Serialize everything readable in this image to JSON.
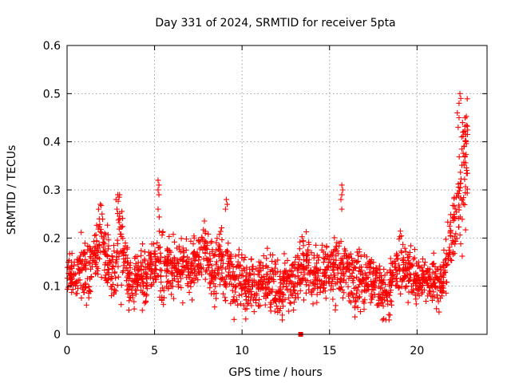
{
  "chart_data": {
    "type": "scatter",
    "title": "Day 331 of 2024, SRMTID for receiver 5pta",
    "xlabel": "GPS time / hours",
    "ylabel": "SRMTID / TECUs",
    "xlim": [
      0,
      24
    ],
    "ylim": [
      0,
      0.6
    ],
    "x_ticks": [
      0,
      5,
      10,
      15,
      20
    ],
    "y_ticks": [
      0,
      0.1,
      0.2,
      0.3,
      0.4,
      0.5,
      0.6
    ],
    "x_tick_labels": [
      "0",
      "5",
      "10",
      "15",
      "20"
    ],
    "y_tick_labels": [
      "0",
      "0.1",
      "0.2",
      "0.3",
      "0.4",
      "0.5",
      "0.6"
    ],
    "grid": true,
    "marker": "plus",
    "point_color": "#ff0000",
    "series": [
      {
        "name": "SRMTID",
        "x": [
          0.0,
          0.25,
          0.5,
          0.75,
          1.0,
          1.25,
          1.5,
          1.75,
          2.0,
          2.25,
          2.5,
          2.75,
          3.0,
          3.25,
          3.5,
          3.75,
          4.0,
          4.25,
          4.5,
          4.75,
          5.0,
          5.25,
          5.5,
          5.75,
          6.0,
          6.25,
          6.5,
          6.75,
          7.0,
          7.25,
          7.5,
          7.75,
          8.0,
          8.25,
          8.5,
          8.75,
          9.0,
          9.25,
          9.5,
          9.75,
          10.0,
          10.25,
          10.5,
          10.75,
          11.0,
          11.25,
          11.5,
          11.75,
          12.0,
          12.25,
          12.5,
          12.75,
          13.0,
          13.25,
          13.5,
          13.75,
          14.0,
          14.25,
          14.5,
          14.75,
          15.0,
          15.25,
          15.5,
          15.75,
          16.0,
          16.25,
          16.5,
          16.75,
          17.0,
          17.25,
          17.5,
          17.75,
          18.0,
          18.25,
          18.5,
          18.75,
          19.0,
          19.25,
          19.5,
          19.75,
          20.0,
          20.25,
          20.5,
          20.75,
          21.0,
          21.25,
          21.5,
          21.75,
          22.0,
          22.25,
          22.5,
          22.75
        ],
        "y": [
          0.13,
          0.12,
          0.1,
          0.15,
          0.14,
          0.12,
          0.16,
          0.18,
          0.2,
          0.15,
          0.13,
          0.12,
          0.2,
          0.15,
          0.11,
          0.1,
          0.12,
          0.13,
          0.11,
          0.14,
          0.14,
          0.16,
          0.12,
          0.15,
          0.13,
          0.14,
          0.12,
          0.15,
          0.13,
          0.15,
          0.14,
          0.16,
          0.15,
          0.14,
          0.12,
          0.15,
          0.11,
          0.13,
          0.1,
          0.12,
          0.11,
          0.1,
          0.12,
          0.09,
          0.11,
          0.12,
          0.1,
          0.11,
          0.08,
          0.1,
          0.12,
          0.11,
          0.1,
          0.13,
          0.14,
          0.15,
          0.12,
          0.11,
          0.14,
          0.13,
          0.12,
          0.15,
          0.14,
          0.13,
          0.15,
          0.12,
          0.11,
          0.13,
          0.1,
          0.12,
          0.11,
          0.1,
          0.09,
          0.08,
          0.1,
          0.12,
          0.15,
          0.14,
          0.13,
          0.12,
          0.11,
          0.1,
          0.12,
          0.11,
          0.12,
          0.1,
          0.11,
          0.16,
          0.2,
          0.25,
          0.3,
          0.38
        ],
        "spread": [
          0.03,
          0.04,
          0.04,
          0.05,
          0.06,
          0.05,
          0.05,
          0.06,
          0.07,
          0.06,
          0.05,
          0.06,
          0.08,
          0.05,
          0.04,
          0.04,
          0.04,
          0.05,
          0.04,
          0.05,
          0.05,
          0.07,
          0.05,
          0.05,
          0.05,
          0.05,
          0.05,
          0.05,
          0.05,
          0.05,
          0.05,
          0.06,
          0.05,
          0.05,
          0.05,
          0.06,
          0.05,
          0.05,
          0.05,
          0.05,
          0.05,
          0.05,
          0.05,
          0.05,
          0.05,
          0.05,
          0.05,
          0.05,
          0.05,
          0.05,
          0.05,
          0.05,
          0.05,
          0.05,
          0.05,
          0.05,
          0.05,
          0.05,
          0.05,
          0.05,
          0.05,
          0.06,
          0.06,
          0.05,
          0.05,
          0.05,
          0.05,
          0.05,
          0.05,
          0.05,
          0.05,
          0.05,
          0.05,
          0.05,
          0.05,
          0.05,
          0.05,
          0.05,
          0.05,
          0.05,
          0.04,
          0.04,
          0.04,
          0.04,
          0.04,
          0.04,
          0.05,
          0.05,
          0.07,
          0.08,
          0.1,
          0.1
        ]
      }
    ],
    "highlights": [
      {
        "x": 1.8,
        "y": 0.26
      },
      {
        "x": 1.9,
        "y": 0.27
      },
      {
        "x": 2.0,
        "y": 0.25
      },
      {
        "x": 2.8,
        "y": 0.28
      },
      {
        "x": 2.9,
        "y": 0.29
      },
      {
        "x": 3.0,
        "y": 0.29
      },
      {
        "x": 2.85,
        "y": 0.26
      },
      {
        "x": 5.2,
        "y": 0.32
      },
      {
        "x": 5.25,
        "y": 0.31
      },
      {
        "x": 5.2,
        "y": 0.3
      },
      {
        "x": 5.25,
        "y": 0.29
      },
      {
        "x": 5.2,
        "y": 0.26
      },
      {
        "x": 9.1,
        "y": 0.28
      },
      {
        "x": 9.15,
        "y": 0.27
      },
      {
        "x": 9.05,
        "y": 0.26
      },
      {
        "x": 15.7,
        "y": 0.31
      },
      {
        "x": 15.75,
        "y": 0.3
      },
      {
        "x": 15.7,
        "y": 0.29
      },
      {
        "x": 15.65,
        "y": 0.28
      },
      {
        "x": 15.7,
        "y": 0.26
      },
      {
        "x": 22.3,
        "y": 0.46
      },
      {
        "x": 22.4,
        "y": 0.48
      },
      {
        "x": 22.45,
        "y": 0.5
      },
      {
        "x": 22.5,
        "y": 0.49
      },
      {
        "x": 22.4,
        "y": 0.45
      },
      {
        "x": 22.6,
        "y": 0.44
      },
      {
        "x": 22.65,
        "y": 0.42
      },
      {
        "x": 22.7,
        "y": 0.39
      },
      {
        "x": 22.55,
        "y": 0.41
      },
      {
        "x": 22.35,
        "y": 0.43
      },
      {
        "x": 12.3,
        "y": 0.03
      },
      {
        "x": 12.3,
        "y": 0.04
      },
      {
        "x": 18.4,
        "y": 0.03
      },
      {
        "x": 18.45,
        "y": 0.04
      },
      {
        "x": 4.3,
        "y": 0.05
      }
    ],
    "outlier": {
      "x": 13.35,
      "y": 0.0
    }
  }
}
